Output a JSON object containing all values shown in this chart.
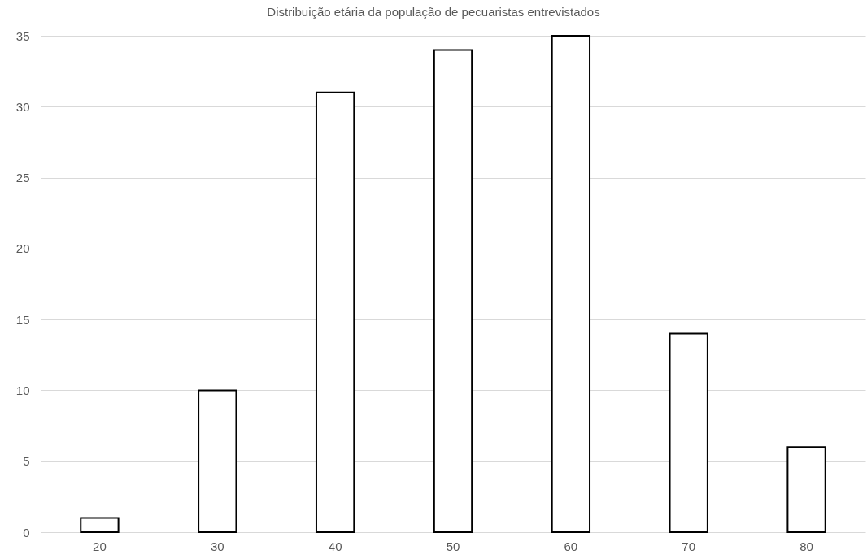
{
  "chart_data": {
    "type": "bar",
    "title": "Distribuição etária da população de pecuaristas entrevistados",
    "categories": [
      "20",
      "30",
      "40",
      "50",
      "60",
      "70",
      "80"
    ],
    "values": [
      1,
      10,
      31,
      34,
      35,
      14,
      6
    ],
    "color": "#ffffff",
    "ylim": [
      0,
      35
    ],
    "yticks": [
      0,
      5,
      10,
      15,
      20,
      25,
      30,
      35
    ],
    "grid": "y"
  }
}
